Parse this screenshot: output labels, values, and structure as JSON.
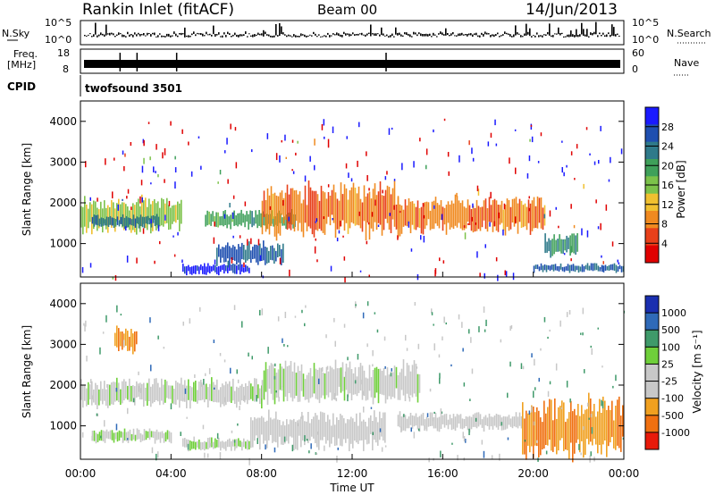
{
  "header": {
    "station": "Rankin Inlet (fitACF)",
    "beam": "Beam 00",
    "date": "14/Jun/2013"
  },
  "top_panels": {
    "nsky_label": "N.Sky",
    "nsearch_label": "N.Search",
    "nsky_ticks": [
      "10^5",
      "10^0"
    ],
    "nsearch_ticks": [
      "10^5",
      "10^0"
    ],
    "freq_label_1": "Freq.",
    "freq_label_2": "[MHz]",
    "freq_ticks": [
      "18",
      "8"
    ],
    "nave_label": "Nave",
    "nave_ticks": [
      "60",
      "0"
    ],
    "cpid_label": "CPID",
    "cpid_value": "twofsound 3501"
  },
  "power_panel": {
    "ylabel": "Slant Range [km]",
    "yticks": [
      "4000",
      "3000",
      "2000",
      "1000"
    ],
    "colorbar_label": "Power [dB]",
    "colorbar_ticks": [
      "28",
      "24",
      "20",
      "16",
      "12",
      "8",
      "4"
    ],
    "colors": [
      "#1a1aff",
      "#1f4fb0",
      "#2f7a8a",
      "#3fa05a",
      "#7cc24a",
      "#f0c030",
      "#f08a20",
      "#e8401a",
      "#e00000"
    ]
  },
  "velocity_panel": {
    "ylabel": "Slant Range [km]",
    "yticks": [
      "4000",
      "3000",
      "2000",
      "1000"
    ],
    "colorbar_label": "Velocity [m s⁻¹]",
    "colorbar_ticks": [
      "1000",
      "500",
      "100",
      "25",
      "-25",
      "-100",
      "-500",
      "-1000"
    ],
    "colors": [
      "#1a2fb0",
      "#2f6ab8",
      "#3f9a6a",
      "#6fcf3a",
      "#c8c8c8",
      "#c8c8c8",
      "#f0a020",
      "#f07010",
      "#e81a0a"
    ]
  },
  "xaxis": {
    "ticks": [
      "00:00",
      "04:00",
      "08:00",
      "12:00",
      "16:00",
      "20:00",
      "00:00"
    ],
    "label": "Time UT"
  },
  "chart_data": [
    {
      "type": "heatmap",
      "title": "Rankin Inlet (fitACF) Beam 00 14/Jun/2013",
      "panel": "power",
      "xlabel": "Time UT",
      "ylabel": "Slant Range [km]",
      "xlim": [
        "00:00",
        "24:00"
      ],
      "ylim": [
        180,
        4500
      ],
      "colorbar": "Power [dB]",
      "clim": [
        0,
        30
      ],
      "regions": [
        {
          "t": [
            0.0,
            4.5
          ],
          "range": [
            1300,
            2100
          ],
          "value": 14
        },
        {
          "t": [
            0.5,
            3.5
          ],
          "range": [
            1400,
            1700
          ],
          "value": 22
        },
        {
          "t": [
            4.5,
            7.5
          ],
          "range": [
            250,
            500
          ],
          "value": 28
        },
        {
          "t": [
            6.0,
            9.0
          ],
          "range": [
            500,
            1000
          ],
          "value": 24
        },
        {
          "t": [
            5.5,
            9.5
          ],
          "range": [
            1400,
            1800
          ],
          "value": 18
        },
        {
          "t": [
            8.0,
            14.0
          ],
          "range": [
            1200,
            2400
          ],
          "value": 8
        },
        {
          "t": [
            14.0,
            20.5
          ],
          "range": [
            1300,
            2100
          ],
          "value": 8
        },
        {
          "t": [
            20.0,
            24.0
          ],
          "range": [
            300,
            500
          ],
          "value": 24
        },
        {
          "t": [
            20.5,
            22.0
          ],
          "range": [
            700,
            1200
          ],
          "value": 20
        }
      ]
    },
    {
      "type": "heatmap",
      "panel": "velocity",
      "xlabel": "Time UT",
      "ylabel": "Slant Range [km]",
      "xlim": [
        "00:00",
        "24:00"
      ],
      "ylim": [
        180,
        4500
      ],
      "colorbar": "Velocity [m s⁻¹]",
      "clim": [
        -1000,
        1000
      ],
      "regions": [
        {
          "t": [
            0.0,
            8.0
          ],
          "range": [
            1500,
            2100
          ],
          "value": 0
        },
        {
          "t": [
            8.0,
            15.0
          ],
          "range": [
            1600,
            2500
          ],
          "value": 0
        },
        {
          "t": [
            0.5,
            4.0
          ],
          "range": [
            600,
            900
          ],
          "value": 100
        },
        {
          "t": [
            4.5,
            7.5
          ],
          "range": [
            400,
            700
          ],
          "value": 100
        },
        {
          "t": [
            7.5,
            13.5
          ],
          "range": [
            500,
            1300
          ],
          "value": -100
        },
        {
          "t": [
            14.0,
            19.5
          ],
          "range": [
            900,
            1300
          ],
          "value": -100
        },
        {
          "t": [
            19.5,
            24.0
          ],
          "range": [
            300,
            1600
          ],
          "value": -500
        },
        {
          "t": [
            1.5,
            2.5
          ],
          "range": [
            2800,
            3400
          ],
          "value": -500
        }
      ]
    }
  ]
}
